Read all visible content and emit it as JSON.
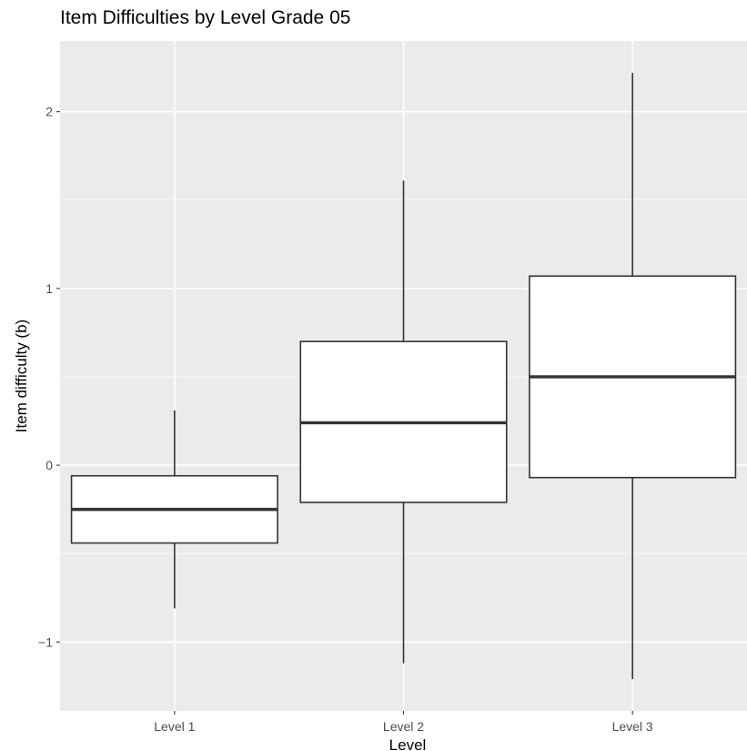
{
  "chart_data": {
    "type": "boxplot",
    "title": "Item Difficulties by Level Grade 05",
    "xlabel": "Level",
    "ylabel": "Item difficulty (b)",
    "categories": [
      "Level 1",
      "Level 2",
      "Level 3"
    ],
    "boxes": [
      {
        "category": "Level 1",
        "whisker_low": -0.81,
        "q1": -0.44,
        "median": -0.25,
        "q3": -0.06,
        "whisker_high": 0.31
      },
      {
        "category": "Level 2",
        "whisker_low": -1.12,
        "q1": -0.21,
        "median": 0.24,
        "q3": 0.7,
        "whisker_high": 1.61
      },
      {
        "category": "Level 3",
        "whisker_low": -1.21,
        "q1": -0.07,
        "median": 0.5,
        "q3": 1.07,
        "whisker_high": 2.22
      }
    ],
    "yticks": [
      -1,
      0,
      1,
      2
    ],
    "ylim": [
      -1.39,
      2.4
    ],
    "grid": true,
    "colors": {
      "panel": "#ebebeb",
      "grid_major": "#ffffff",
      "box_fill": "#ffffff",
      "box_stroke": "#333333",
      "axis_text": "#4d4d4d"
    }
  }
}
